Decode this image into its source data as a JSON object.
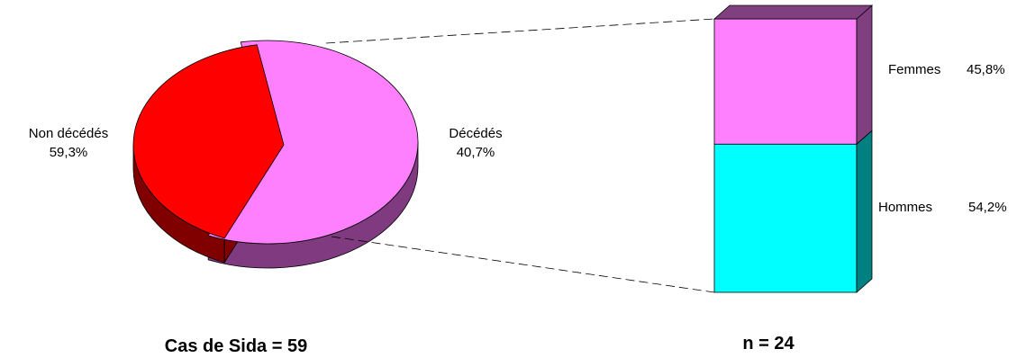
{
  "chart_data": [
    {
      "type": "pie",
      "caption": "Cas de Sida = 59",
      "slices": [
        {
          "label": "Non décédés",
          "value_text": "59,3%",
          "value": 59.3,
          "color": "#ff80ff",
          "side_color": "#803a80"
        },
        {
          "label": "Décédés",
          "value_text": "40,7%",
          "value": 40.7,
          "color": "#ff0000",
          "side_color": "#800000",
          "exploded": true
        }
      ]
    },
    {
      "type": "bar",
      "stacked": true,
      "caption": "n = 24",
      "segments": [
        {
          "label": "Hommes",
          "value_text": "54,2%",
          "value": 54.2,
          "color": "#00ffff",
          "side_color": "#008080"
        },
        {
          "label": "Femmes",
          "value_text": "45,8%",
          "value": 45.8,
          "color": "#ff80ff",
          "side_color": "#804080"
        }
      ]
    }
  ]
}
